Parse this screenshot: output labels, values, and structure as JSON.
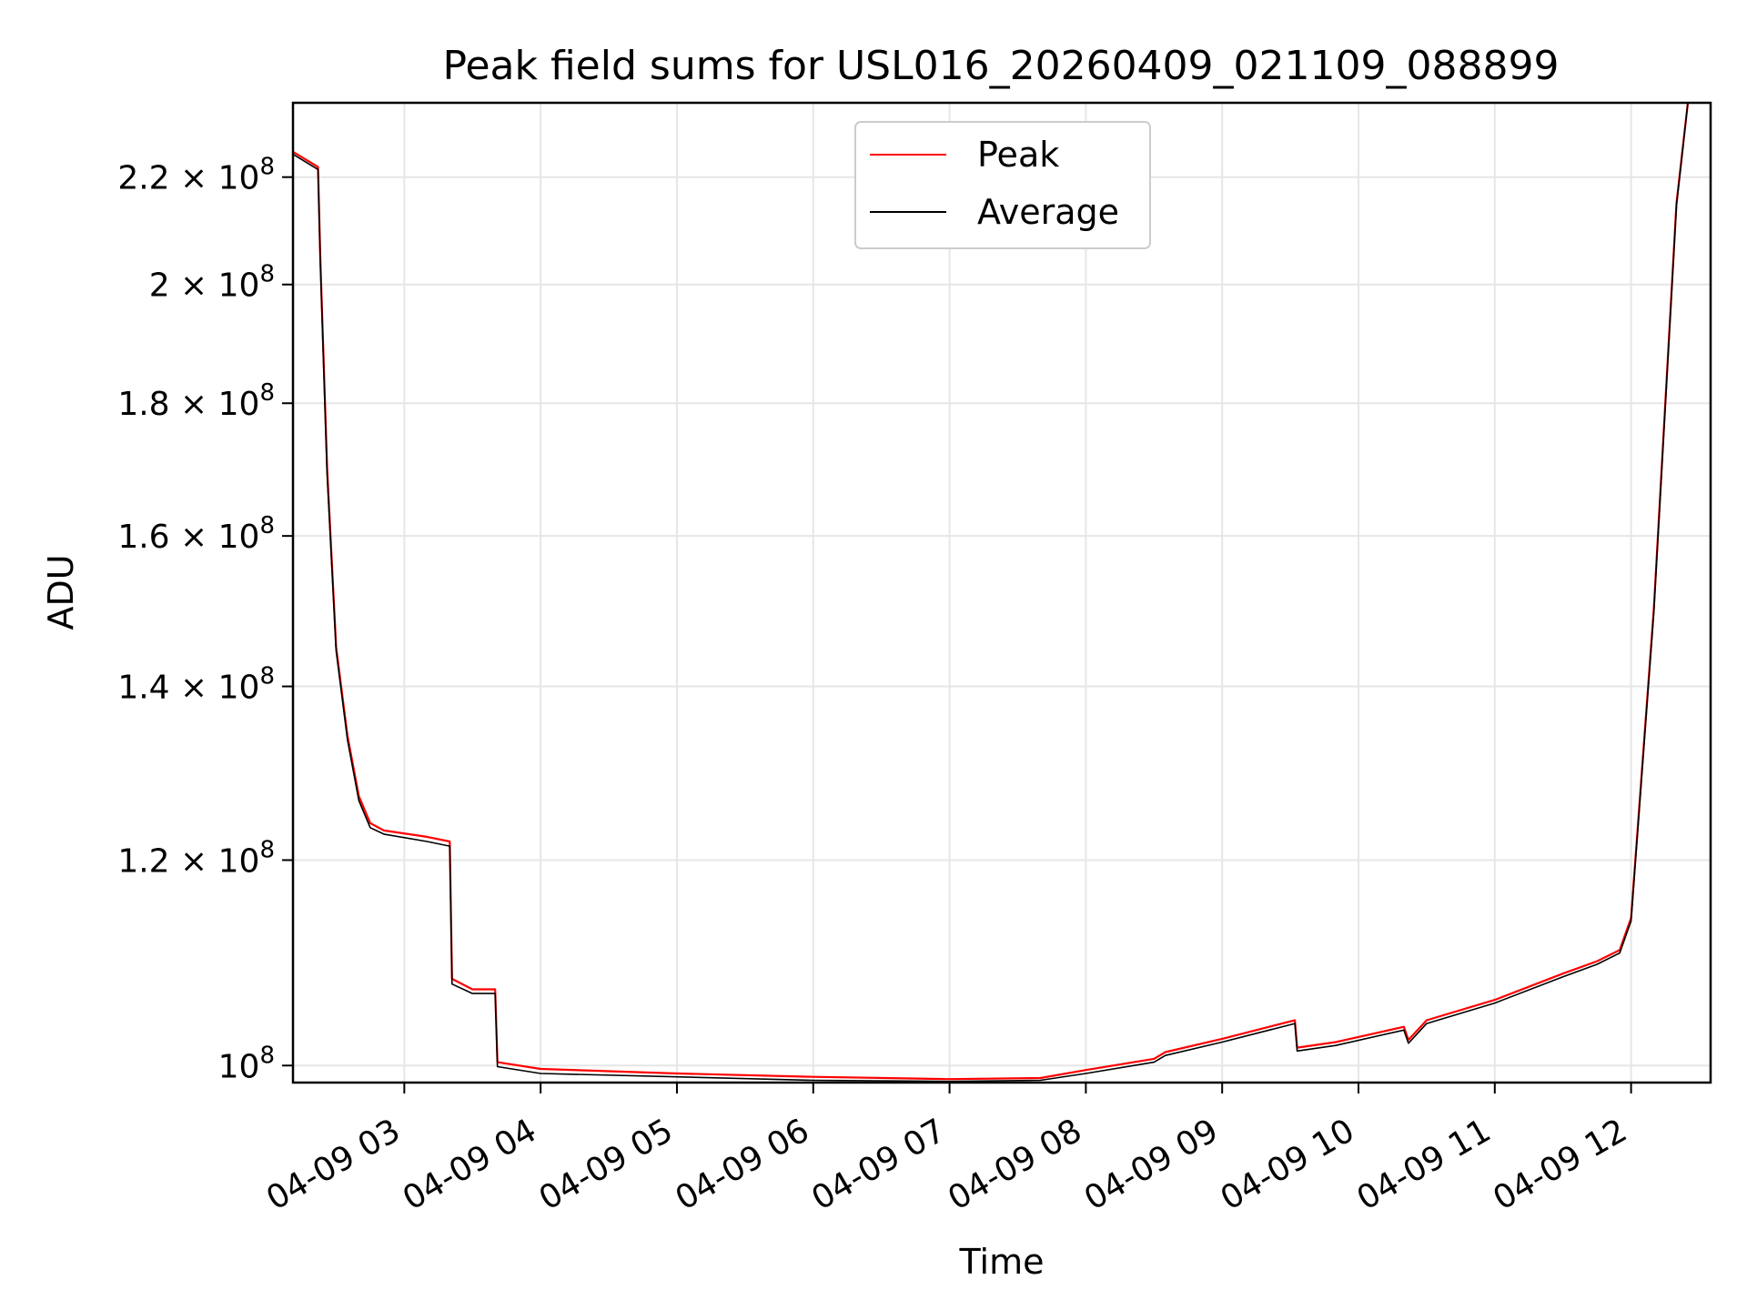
{
  "chart_data": {
    "type": "line",
    "title": "Peak field sums for USL016_20260409_021109_088899",
    "xlabel": "Time",
    "ylabel": "ADU",
    "x_scale": "time",
    "y_scale": "log",
    "xlim": [
      "2026-04-09 02:11",
      "2026-04-09 12:35"
    ],
    "ylim": [
      98500000,
      235000000
    ],
    "grid": true,
    "legend": {
      "placement": "top-center"
    },
    "x_ticks": [
      "2026-04-09 03:00",
      "2026-04-09 04:00",
      "2026-04-09 05:00",
      "2026-04-09 06:00",
      "2026-04-09 07:00",
      "2026-04-09 08:00",
      "2026-04-09 09:00",
      "2026-04-09 10:00",
      "2026-04-09 11:00",
      "2026-04-09 12:00"
    ],
    "x_tick_labels": [
      "04-09 03",
      "04-09 04",
      "04-09 05",
      "04-09 06",
      "04-09 07",
      "04-09 08",
      "04-09 09",
      "04-09 10",
      "04-09 11",
      "04-09 12"
    ],
    "y_ticks": [
      {
        "value": 100000000,
        "base": "10",
        "exp": "8"
      },
      {
        "value": 120000000,
        "base": "1.2 × 10",
        "exp": "8"
      },
      {
        "value": 140000000,
        "base": "1.4 × 10",
        "exp": "8"
      },
      {
        "value": 160000000,
        "base": "1.6 × 10",
        "exp": "8"
      },
      {
        "value": 180000000,
        "base": "1.8 × 10",
        "exp": "8"
      },
      {
        "value": 200000000,
        "base": "2 × 10",
        "exp": "8"
      },
      {
        "value": 220000000,
        "base": "2.2 × 10",
        "exp": "8"
      }
    ],
    "series": [
      {
        "name": "Peak",
        "color": "#ff0000",
        "x": [
          "2026-04-09 02:11",
          "2026-04-09 02:22",
          "2026-04-09 02:23",
          "2026-04-09 02:26",
          "2026-04-09 02:30",
          "2026-04-09 02:35",
          "2026-04-09 02:40",
          "2026-04-09 02:45",
          "2026-04-09 02:51",
          "2026-04-09 03:10",
          "2026-04-09 03:20",
          "2026-04-09 03:21",
          "2026-04-09 03:30",
          "2026-04-09 03:40",
          "2026-04-09 03:41",
          "2026-04-09 04:00",
          "2026-04-09 05:00",
          "2026-04-09 06:00",
          "2026-04-09 07:00",
          "2026-04-09 07:40",
          "2026-04-09 08:00",
          "2026-04-09 08:30",
          "2026-04-09 08:35",
          "2026-04-09 09:00",
          "2026-04-09 09:32",
          "2026-04-09 09:33",
          "2026-04-09 09:50",
          "2026-04-09 10:20",
          "2026-04-09 10:22",
          "2026-04-09 10:30",
          "2026-04-09 11:00",
          "2026-04-09 11:30",
          "2026-04-09 11:45",
          "2026-04-09 11:55",
          "2026-04-09 12:00",
          "2026-04-09 12:10",
          "2026-04-09 12:20",
          "2026-04-09 12:25"
        ],
        "y": [
          225000000,
          222000000,
          205000000,
          170000000,
          145000000,
          134000000,
          127000000,
          124000000,
          123200000,
          122500000,
          122000000,
          108000000,
          107000000,
          107000000,
          100300000,
          99700000,
          99300000,
          99000000,
          98800000,
          98900000,
          99600000,
          100600000,
          101200000,
          102400000,
          104100000,
          101600000,
          102100000,
          103500000,
          102300000,
          104100000,
          106000000,
          108500000,
          109700000,
          110800000,
          114000000,
          150000000,
          215000000,
          235000000
        ]
      },
      {
        "name": "Average",
        "color": "#000000",
        "x": [
          "2026-04-09 02:11",
          "2026-04-09 02:22",
          "2026-04-09 02:23",
          "2026-04-09 02:26",
          "2026-04-09 02:30",
          "2026-04-09 02:35",
          "2026-04-09 02:40",
          "2026-04-09 02:45",
          "2026-04-09 02:51",
          "2026-04-09 03:10",
          "2026-04-09 03:20",
          "2026-04-09 03:21",
          "2026-04-09 03:30",
          "2026-04-09 03:40",
          "2026-04-09 03:41",
          "2026-04-09 04:00",
          "2026-04-09 05:00",
          "2026-04-09 06:00",
          "2026-04-09 07:00",
          "2026-04-09 07:40",
          "2026-04-09 08:00",
          "2026-04-09 08:30",
          "2026-04-09 08:35",
          "2026-04-09 09:00",
          "2026-04-09 09:32",
          "2026-04-09 09:33",
          "2026-04-09 09:50",
          "2026-04-09 10:20",
          "2026-04-09 10:22",
          "2026-04-09 10:30",
          "2026-04-09 11:00",
          "2026-04-09 11:30",
          "2026-04-09 11:45",
          "2026-04-09 11:55",
          "2026-04-09 12:00",
          "2026-04-09 12:10",
          "2026-04-09 12:20",
          "2026-04-09 12:25"
        ],
        "y": [
          224500000,
          221500000,
          204000000,
          169000000,
          144500000,
          133500000,
          126500000,
          123500000,
          122800000,
          122000000,
          121500000,
          107500000,
          106600000,
          106600000,
          99900000,
          99300000,
          99000000,
          98700000,
          98600000,
          98700000,
          99300000,
          100300000,
          100900000,
          102100000,
          103800000,
          101300000,
          101800000,
          103200000,
          102000000,
          103800000,
          105700000,
          108200000,
          109400000,
          110500000,
          113700000,
          149500000,
          214500000,
          235000000
        ]
      }
    ]
  }
}
